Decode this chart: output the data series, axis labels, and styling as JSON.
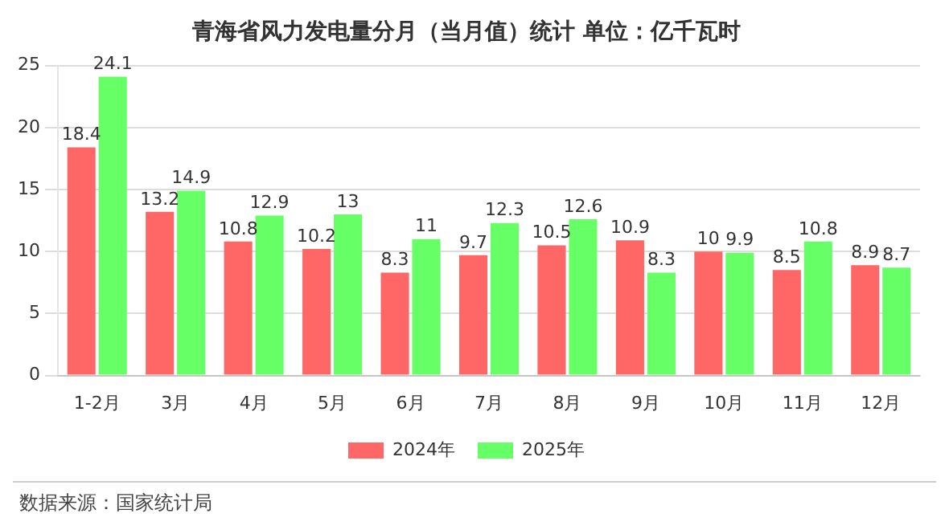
{
  "chart_data": {
    "type": "bar",
    "title": "青海省风力发电量分月（当月值）统计 单位：亿千瓦时",
    "categories": [
      "1-2月",
      "3月",
      "4月",
      "5月",
      "6月",
      "7月",
      "8月",
      "9月",
      "10月",
      "11月",
      "12月"
    ],
    "series": [
      {
        "name": "2024年",
        "color": "#ff6666",
        "values": [
          18.4,
          13.2,
          10.8,
          10.2,
          8.3,
          9.7,
          10.5,
          10.9,
          10,
          8.5,
          8.9
        ]
      },
      {
        "name": "2025年",
        "color": "#66ff66",
        "values": [
          24.1,
          14.9,
          12.9,
          13,
          11,
          12.3,
          12.6,
          8.3,
          9.9,
          10.8,
          8.7
        ]
      }
    ],
    "ylim": [
      0,
      25
    ],
    "yticks": [
      0,
      5,
      10,
      15,
      20,
      25
    ],
    "grid": "y",
    "legend": "bottom",
    "data_labels": true,
    "annotations": [
      "数据来源：国家统计局"
    ]
  }
}
